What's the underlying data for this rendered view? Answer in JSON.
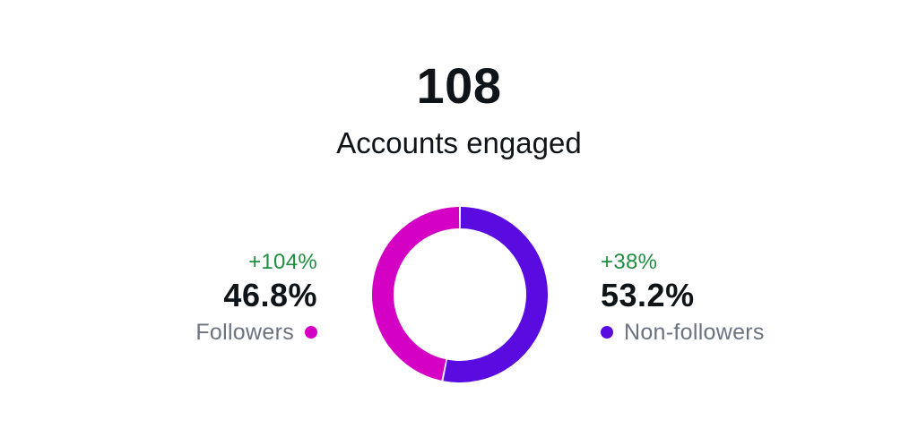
{
  "summary": {
    "total": "108",
    "label": "Accounts engaged"
  },
  "chart_data": {
    "type": "pie",
    "style": "donut",
    "categories": [
      "Followers",
      "Non-followers"
    ],
    "values": [
      46.8,
      53.2
    ],
    "value_labels": [
      "46.8%",
      "53.2%"
    ],
    "changes": [
      "+104%",
      "+38%"
    ],
    "colors": [
      "#d400c4",
      "#5a0ce0"
    ],
    "change_color": "#1e8f3f",
    "legend": "sides"
  }
}
